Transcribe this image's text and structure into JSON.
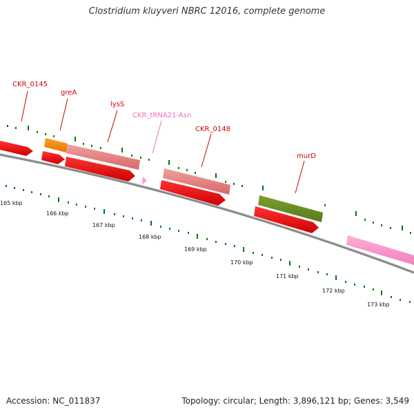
{
  "title": "Clostridium kluyveri NBRC 12016, complete genome",
  "footer": {
    "accession": "Accession: NC_011837",
    "summary": "Topology: circular; Length: 3,896,121 bp; Genes: 3,549"
  },
  "scale_labels": [
    "165 kbp",
    "166 kbp",
    "167 kbp",
    "168 kbp",
    "169 kbp",
    "170 kbp",
    "171 kbp",
    "172 kbp",
    "173 kbp"
  ],
  "genes": [
    {
      "name": "CKR_0145",
      "color": "#cc0000"
    },
    {
      "name": "greA",
      "color": "#cc0000"
    },
    {
      "name": "lysS",
      "color": "#cc0000"
    },
    {
      "name": "CKR_tRNA21-Asn",
      "color": "#f06eb4"
    },
    {
      "name": "CKR_0148",
      "color": "#cc0000"
    },
    {
      "name": "murD",
      "color": "#cc0000"
    }
  ],
  "colors": {
    "cds": "#ff0000",
    "orange": "#ff8c00",
    "salmon": "#e87878",
    "olive": "#6b8e23",
    "pink": "#ff99cc",
    "backbone": "#888888",
    "tick": "#007700"
  }
}
